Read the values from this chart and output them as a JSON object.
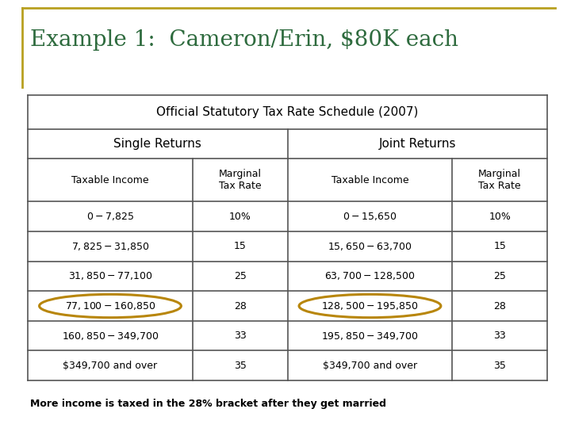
{
  "title": "Example 1:  Cameron/Erin, $80K each",
  "title_color": "#2E6B3E",
  "table_title": "Official Statutory Tax Rate Schedule (2007)",
  "single_label": "Single Returns",
  "joint_label": "Joint Returns",
  "col_headers": [
    "Taxable Income",
    "Marginal\nTax Rate",
    "Taxable Income",
    "Marginal\nTax Rate"
  ],
  "rows": [
    [
      "$0-$7,825",
      "10%",
      "$0-$15,650",
      "10%"
    ],
    [
      "$7,825-$31,850",
      "15",
      "$15,650-$63,700",
      "15"
    ],
    [
      "$31,850-$77,100",
      "25",
      "$63,700-$128,500",
      "25"
    ],
    [
      "$77,100-$160,850",
      "28",
      "$128,500-$195,850",
      "28"
    ],
    [
      "$160,850-$349,700",
      "33",
      "$195,850-$349,700",
      "33"
    ],
    [
      "$349,700 and over",
      "35",
      "$349,700 and over",
      "35"
    ]
  ],
  "circle_row": 3,
  "circle_cols": [
    0,
    2
  ],
  "circle_color": "#B8860B",
  "footer": "More income is taxed in the 28% bracket after they get married",
  "bg_color": "#FFFFFF",
  "border_color": "#555555",
  "title_border_color": "#B8A020"
}
